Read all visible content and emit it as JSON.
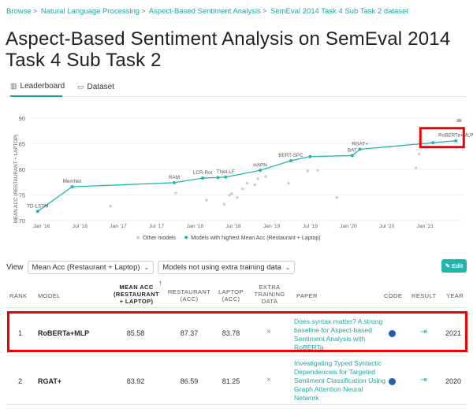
{
  "breadcrumb": [
    "Browse",
    "Natural Language Processing",
    "Aspect-Based Sentiment Analysis",
    "SemEval 2014 Task 4 Sub Task 2 dataset"
  ],
  "title_line1": "Aspect-Based Sentiment Analysis on SemEval 2014",
  "title_line2": "Task 4 Sub Task 2",
  "tabs": [
    {
      "label": "Leaderboard",
      "icon": "bar-chart-icon"
    },
    {
      "label": "Dataset",
      "icon": "folder-icon"
    }
  ],
  "chart_data": {
    "type": "scatter",
    "ylabel": "MEAN ACC (RESTAURANT + LAPTOP)",
    "ylim": [
      70,
      90
    ],
    "yticks": [
      70,
      75,
      80,
      85,
      90
    ],
    "xticks": [
      {
        "label": "Jan '16",
        "t": 2016.0
      },
      {
        "label": "Jul '16",
        "t": 2016.5
      },
      {
        "label": "Jan '17",
        "t": 2017.0
      },
      {
        "label": "Jul '17",
        "t": 2017.5
      },
      {
        "label": "Jan '18",
        "t": 2018.0
      },
      {
        "label": "Jul '18",
        "t": 2018.5
      },
      {
        "label": "Jan '19",
        "t": 2019.0
      },
      {
        "label": "Jul '19",
        "t": 2019.5
      },
      {
        "label": "Jan '20",
        "t": 2020.0
      },
      {
        "label": "Jul '20",
        "t": 2020.5
      },
      {
        "label": "Jan '21",
        "t": 2021.0
      }
    ],
    "xlim": [
      2015.85,
      2021.5
    ],
    "series": [
      {
        "name": "Models with highest Mean Acc (Restaurant + Laptop)",
        "color": "#21b5ad",
        "points": [
          {
            "t": 2015.95,
            "y": 71.8,
            "label": "TD-LSTM"
          },
          {
            "t": 2016.4,
            "y": 76.6,
            "label": "MemNet"
          },
          {
            "t": 2017.73,
            "y": 77.4,
            "label": "RAM"
          },
          {
            "t": 2018.1,
            "y": 78.3,
            "label": "LCR-Rot"
          },
          {
            "t": 2018.3,
            "y": 78.4,
            "label": ""
          },
          {
            "t": 2018.4,
            "y": 78.5,
            "label": "TNet-LF"
          },
          {
            "t": 2018.85,
            "y": 79.8,
            "label": "HAPN"
          },
          {
            "t": 2019.25,
            "y": 81.7,
            "label": "BERT-SPC"
          },
          {
            "t": 2019.5,
            "y": 82.5,
            "label": ""
          },
          {
            "t": 2020.05,
            "y": 82.7,
            "label": "BAT"
          },
          {
            "t": 2020.15,
            "y": 83.92,
            "label": "RGAT+"
          },
          {
            "t": 2021.1,
            "y": 85.2,
            "label": ""
          },
          {
            "t": 2021.4,
            "y": 85.58,
            "label": "RoBERTa+MLP"
          }
        ]
      },
      {
        "name": "Other models",
        "color": "#cccccc",
        "points": [
          {
            "t": 2016.9,
            "y": 72.8
          },
          {
            "t": 2017.75,
            "y": 75.4
          },
          {
            "t": 2018.15,
            "y": 74.0
          },
          {
            "t": 2018.38,
            "y": 73.2
          },
          {
            "t": 2018.45,
            "y": 75.0
          },
          {
            "t": 2018.48,
            "y": 75.3
          },
          {
            "t": 2018.55,
            "y": 74.5
          },
          {
            "t": 2018.62,
            "y": 76.2
          },
          {
            "t": 2018.68,
            "y": 77.3
          },
          {
            "t": 2018.78,
            "y": 77.0
          },
          {
            "t": 2018.82,
            "y": 78.2
          },
          {
            "t": 2018.92,
            "y": 78.6
          },
          {
            "t": 2019.22,
            "y": 77.3
          },
          {
            "t": 2019.47,
            "y": 79.7
          },
          {
            "t": 2019.6,
            "y": 79.8
          },
          {
            "t": 2019.85,
            "y": 74.5
          },
          {
            "t": 2020.88,
            "y": 80.3
          },
          {
            "t": 2020.92,
            "y": 83.0
          }
        ]
      }
    ],
    "legend": [
      {
        "label": "Other models",
        "color": "#cccccc"
      },
      {
        "label": "Models with highest Mean Acc (Restaurant + Laptop)",
        "color": "#21b5ad"
      }
    ]
  },
  "view_label": "View",
  "metric_select": "Mean Acc (Restaurant + Laptop)",
  "filter_select": "Models not using extra training data",
  "edit_label": "Edit",
  "columns": {
    "rank": "RANK",
    "model": "MODEL",
    "mean_l1": "MEAN ACC",
    "mean_l2": "(RESTAURANT",
    "mean_l3": "+ LAPTOP)",
    "rest_l1": "RESTAURANT",
    "rest_l2": "(ACC)",
    "lap_l1": "LAPTOP",
    "lap_l2": "(ACC)",
    "extra_l1": "EXTRA",
    "extra_l2": "TRAINING",
    "extra_l3": "DATA",
    "paper": "PAPER",
    "code": "CODE",
    "result": "RESULT",
    "year": "YEAR"
  },
  "sort_arrow": "↑",
  "rows": [
    {
      "rank": "1",
      "model": "RoBERTa+MLP",
      "mean": "85.58",
      "rest": "87.37",
      "lap": "83.78",
      "extra": "×",
      "paper": "Does syntax matter? A strong baseline for Aspect-based Sentiment Analysis with RoBERTa",
      "year": "2021"
    },
    {
      "rank": "2",
      "model": "RGAT+",
      "mean": "83.92",
      "rest": "86.59",
      "lap": "81.25",
      "extra": "×",
      "paper": "Investigating Typed Syntactic Dependencies for Targeted Sentiment Classification Using Graph Attention Neural Network",
      "year": "2020"
    }
  ]
}
